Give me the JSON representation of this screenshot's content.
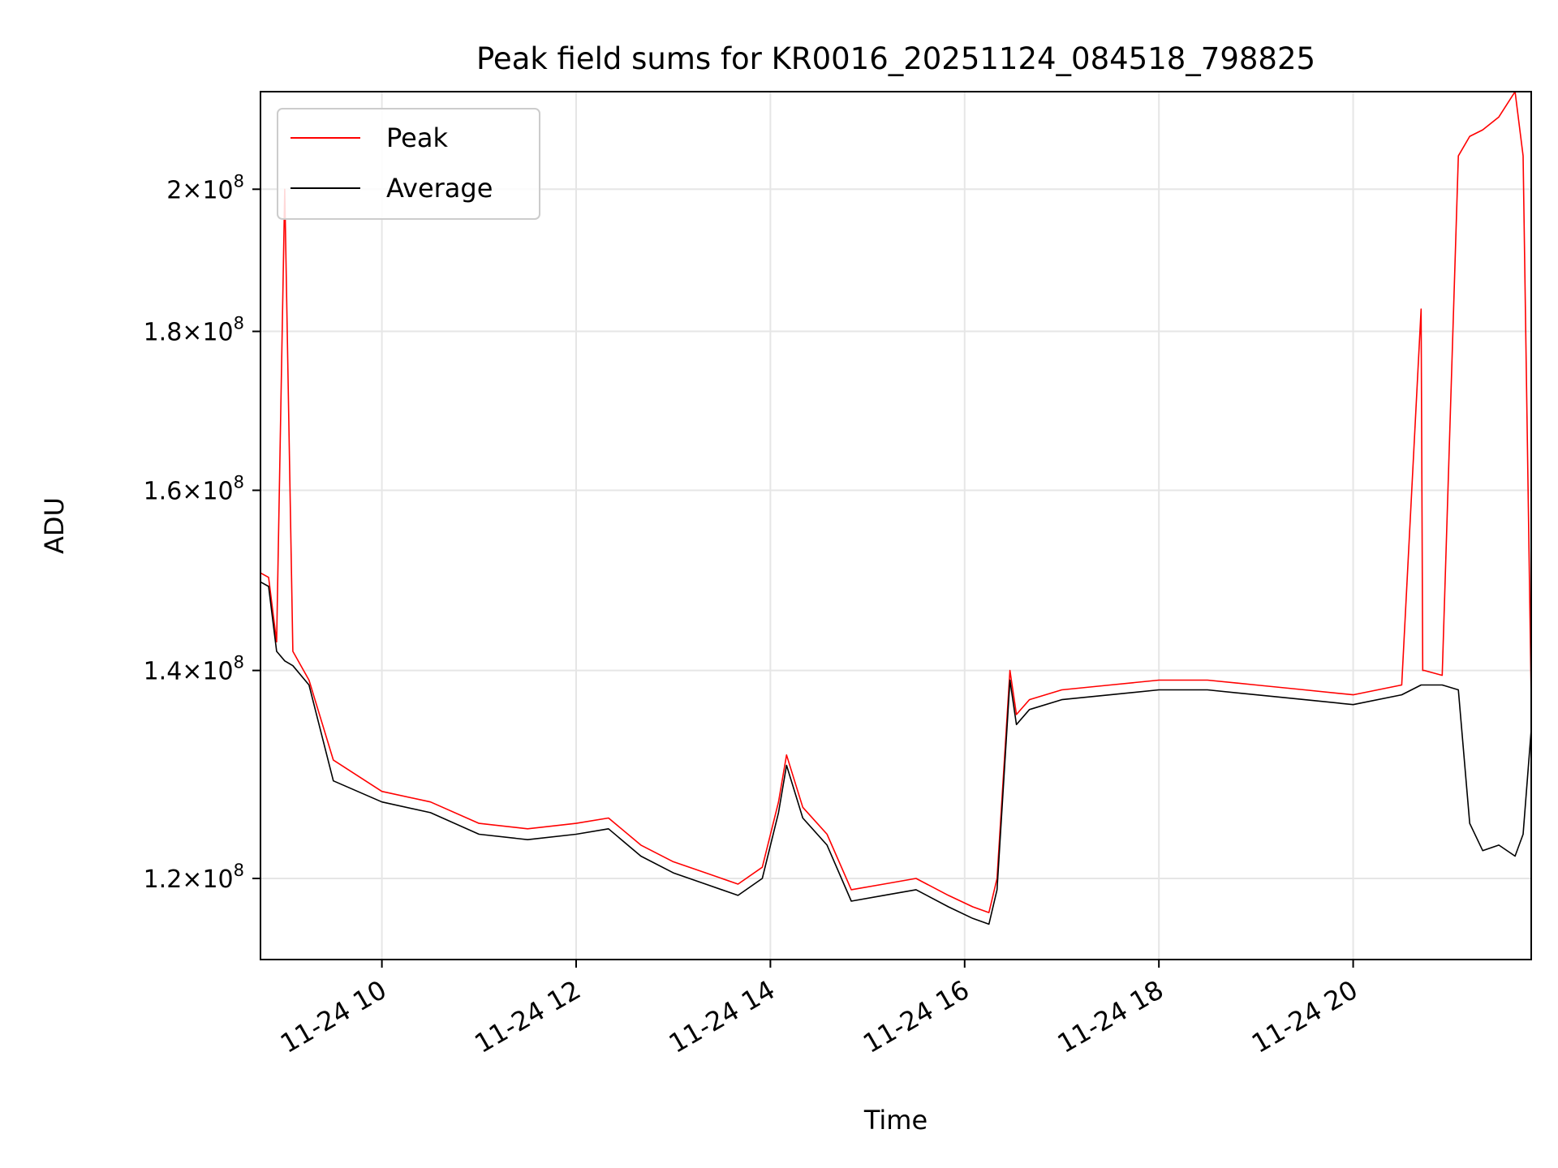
{
  "chart_data": {
    "type": "line",
    "title": "Peak field sums for KR0016_20251124_084518_798825",
    "xlabel": "Time",
    "ylabel": "ADU",
    "x_tick_labels": [
      "11-24 10",
      "11-24 12",
      "11-24 14",
      "11-24 16",
      "11-24 18",
      "11-24 20"
    ],
    "x_ticks": [
      "2025-11-24 10:00",
      "2025-11-24 12:00",
      "2025-11-24 14:00",
      "2025-11-24 16:00",
      "2025-11-24 18:00",
      "2025-11-24 20:00"
    ],
    "xlim": [
      "2025-11-24 08:45",
      "2025-11-24 21:50"
    ],
    "y_scale": "log",
    "ylim": [
      113000000,
      215000000
    ],
    "y_tick_labels": [
      {
        "value": 120000000,
        "mantissa": "1.2",
        "base": "10",
        "exponent": "8"
      },
      {
        "value": 140000000,
        "mantissa": "1.4",
        "base": "10",
        "exponent": "8"
      },
      {
        "value": 160000000,
        "mantissa": "1.6",
        "base": "10",
        "exponent": "8"
      },
      {
        "value": 180000000,
        "mantissa": "1.8",
        "base": "10",
        "exponent": "8"
      },
      {
        "value": 200000000,
        "mantissa": "2",
        "base": "10",
        "exponent": "8"
      }
    ],
    "grid": true,
    "legend_position": "upper-left",
    "series": [
      {
        "name": "Peak",
        "color": "#ff0000",
        "x": [
          "08:45",
          "08:50",
          "08:55",
          "09:00",
          "09:05",
          "09:15",
          "09:30",
          "10:00",
          "10:30",
          "11:00",
          "11:30",
          "12:00",
          "12:20",
          "12:40",
          "13:00",
          "13:20",
          "13:40",
          "13:55",
          "14:05",
          "14:10",
          "14:20",
          "14:35",
          "14:50",
          "15:10",
          "15:30",
          "15:50",
          "16:05",
          "16:15",
          "16:20",
          "16:28",
          "16:32",
          "16:40",
          "17:00",
          "17:30",
          "18:00",
          "18:30",
          "19:00",
          "19:30",
          "20:00",
          "20:30",
          "20:42",
          "20:43",
          "20:44",
          "20:55",
          "21:05",
          "21:12",
          "21:20",
          "21:30",
          "21:40",
          "21:45",
          "21:50"
        ],
        "y": [
          150500000,
          150000000,
          143000000,
          200000000,
          142000000,
          139000000,
          131000000,
          128000000,
          127000000,
          125000000,
          124500000,
          125000000,
          125500000,
          123000000,
          121500000,
          120500000,
          119500000,
          121000000,
          127000000,
          131500000,
          126500000,
          124000000,
          119000000,
          119500000,
          120000000,
          118500000,
          117500000,
          117000000,
          120000000,
          140000000,
          135500000,
          137000000,
          138000000,
          138500000,
          139000000,
          139000000,
          138500000,
          138000000,
          137500000,
          138500000,
          183000000,
          140000000,
          140000000,
          139500000,
          205000000,
          208000000,
          209000000,
          211000000,
          215000000,
          205000000,
          137000000
        ]
      },
      {
        "name": "Average",
        "color": "#000000",
        "x": [
          "08:45",
          "08:50",
          "08:55",
          "09:00",
          "09:05",
          "09:15",
          "09:30",
          "10:00",
          "10:30",
          "11:00",
          "11:30",
          "12:00",
          "12:20",
          "12:40",
          "13:00",
          "13:20",
          "13:40",
          "13:55",
          "14:05",
          "14:10",
          "14:20",
          "14:35",
          "14:50",
          "15:10",
          "15:30",
          "15:50",
          "16:05",
          "16:15",
          "16:20",
          "16:28",
          "16:32",
          "16:40",
          "17:00",
          "17:30",
          "18:00",
          "18:30",
          "19:00",
          "19:30",
          "20:00",
          "20:30",
          "20:42",
          "20:55",
          "21:05",
          "21:12",
          "21:20",
          "21:30",
          "21:40",
          "21:45",
          "21:50"
        ],
        "y": [
          149500000,
          149000000,
          142000000,
          141000000,
          140500000,
          138500000,
          129000000,
          127000000,
          126000000,
          124000000,
          123500000,
          124000000,
          124500000,
          122000000,
          120500000,
          119500000,
          118500000,
          120000000,
          126000000,
          130500000,
          125500000,
          123000000,
          118000000,
          118500000,
          119000000,
          117500000,
          116500000,
          116000000,
          119000000,
          139000000,
          134500000,
          136000000,
          137000000,
          137500000,
          138000000,
          138000000,
          137500000,
          137000000,
          136500000,
          137500000,
          138500000,
          138500000,
          138000000,
          125000000,
          122500000,
          123000000,
          122000000,
          124000000,
          134000000
        ]
      }
    ]
  }
}
